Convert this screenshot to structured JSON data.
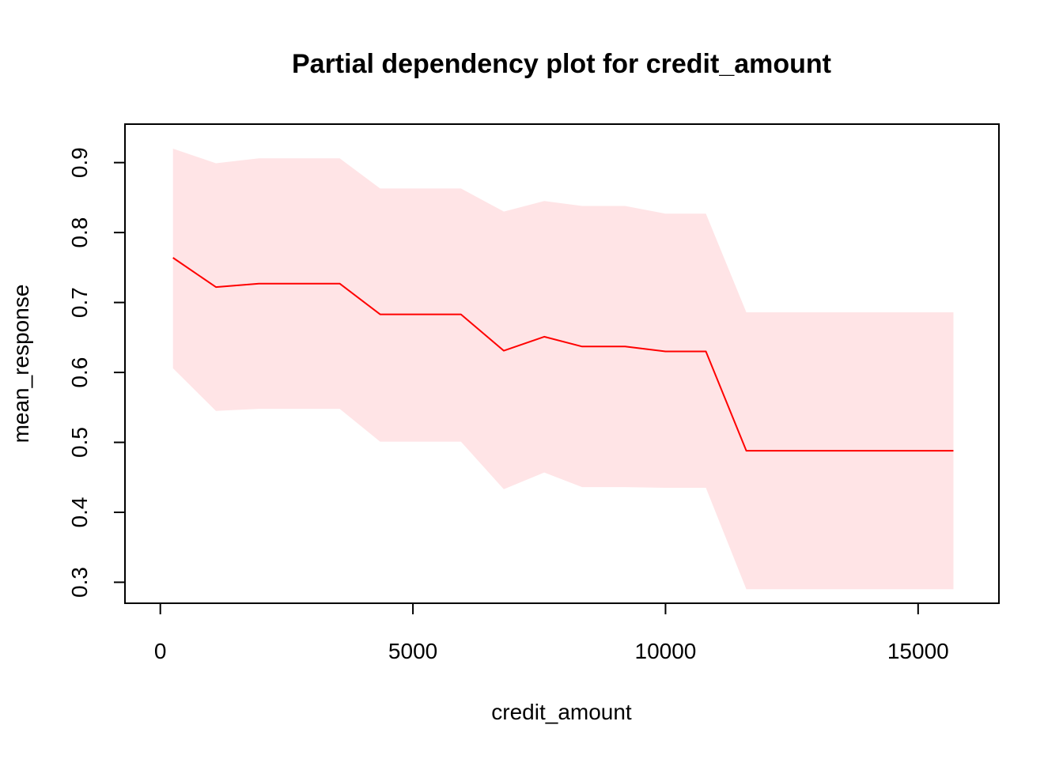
{
  "chart_data": {
    "type": "line",
    "title": "Partial dependency plot for credit_amount",
    "xlabel": "credit_amount",
    "ylabel": "mean_response",
    "xlim": [
      -700,
      16600
    ],
    "ylim": [
      0.27,
      0.955
    ],
    "x_ticks": [
      0,
      5000,
      10000,
      15000
    ],
    "y_ticks": [
      0.3,
      0.4,
      0.5,
      0.6,
      0.7,
      0.8,
      0.9
    ],
    "x_tick_labels": [
      "0",
      "5000",
      "10000",
      "15000"
    ],
    "y_tick_labels": [
      "0.3",
      "0.4",
      "0.5",
      "0.6",
      "0.7",
      "0.8",
      "0.9"
    ],
    "grid": false,
    "legend": "none",
    "colors": {
      "line": "#ff0000",
      "band": "#ffe4e6",
      "frame": "#000000"
    },
    "series": [
      {
        "x": [
          250,
          1100,
          1950,
          2700,
          3550,
          4350,
          5150,
          5950,
          6800,
          7600,
          8350,
          9200,
          10000,
          10800,
          11600,
          12400,
          13250,
          14050,
          14850,
          15700
        ],
        "mean": [
          0.764,
          0.722,
          0.727,
          0.727,
          0.727,
          0.683,
          0.683,
          0.683,
          0.631,
          0.651,
          0.637,
          0.637,
          0.63,
          0.63,
          0.488,
          0.488,
          0.488,
          0.488,
          0.488,
          0.488
        ],
        "upper": [
          0.92,
          0.899,
          0.906,
          0.906,
          0.906,
          0.863,
          0.863,
          0.863,
          0.83,
          0.845,
          0.838,
          0.838,
          0.827,
          0.827,
          0.686,
          0.686,
          0.686,
          0.686,
          0.686,
          0.686
        ],
        "lower": [
          0.606,
          0.545,
          0.548,
          0.548,
          0.548,
          0.501,
          0.501,
          0.501,
          0.433,
          0.457,
          0.436,
          0.436,
          0.435,
          0.435,
          0.29,
          0.29,
          0.29,
          0.29,
          0.29,
          0.29
        ]
      }
    ]
  }
}
